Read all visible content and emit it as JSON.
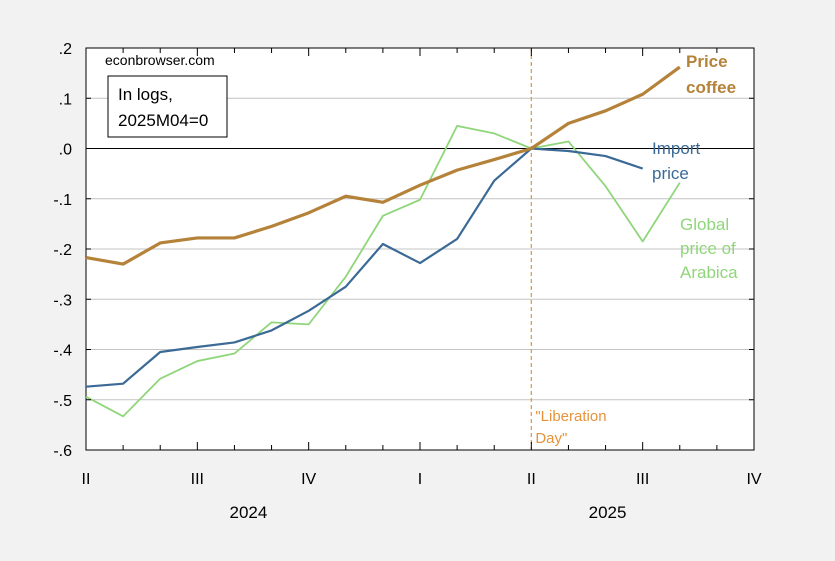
{
  "chart_data": {
    "type": "line",
    "source_note": "econbrowser.com",
    "note_lines": [
      "In logs,",
      "2025M04=0"
    ],
    "ylim": [
      -0.6,
      0.2
    ],
    "yticks": [
      {
        "value": 0.2,
        "label": ".2"
      },
      {
        "value": 0.1,
        "label": ".1"
      },
      {
        "value": 0.0,
        "label": ".0"
      },
      {
        "value": -0.1,
        "label": "-.1"
      },
      {
        "value": -0.2,
        "label": "-.2"
      },
      {
        "value": -0.3,
        "label": "-.3"
      },
      {
        "value": -0.4,
        "label": "-.4"
      },
      {
        "value": -0.5,
        "label": "-.5"
      },
      {
        "value": -0.6,
        "label": "-.6"
      }
    ],
    "x": [
      "2024M04",
      "2024M05",
      "2024M06",
      "2024M07",
      "2024M08",
      "2024M09",
      "2024M10",
      "2024M11",
      "2024M12",
      "2025M01",
      "2025M02",
      "2025M03",
      "2025M04",
      "2025M05",
      "2025M06",
      "2025M07",
      "2025M08"
    ],
    "xlim": [
      "2024M04",
      "2025M10"
    ],
    "quarter_ticks": [
      {
        "at": "2024M04",
        "label": "II"
      },
      {
        "at": "2024M07",
        "label": "III"
      },
      {
        "at": "2024M10",
        "label": "IV"
      },
      {
        "at": "2025M01",
        "label": "I"
      },
      {
        "at": "2025M04",
        "label": "II"
      },
      {
        "at": "2025M07",
        "label": "III"
      },
      {
        "at": "2025M10",
        "label": "IV"
      }
    ],
    "years": [
      {
        "label": "2024",
        "center": "2024M08"
      },
      {
        "label": "2025",
        "center": "2025M06"
      }
    ],
    "series": [
      {
        "name": "Price coffee",
        "label_lines": [
          "Price",
          "coffee"
        ],
        "color": "#b5823a",
        "values": [
          -0.217,
          -0.23,
          -0.188,
          -0.178,
          -0.178,
          -0.155,
          -0.128,
          -0.095,
          -0.107,
          -0.073,
          -0.043,
          -0.022,
          0.0,
          0.05,
          0.075,
          0.108,
          0.162
        ]
      },
      {
        "name": "Import price",
        "label_lines": [
          "Import",
          "price"
        ],
        "color": "#3b6a96",
        "values": [
          -0.474,
          -0.468,
          -0.405,
          -0.395,
          -0.386,
          -0.362,
          -0.323,
          -0.275,
          -0.19,
          -0.228,
          -0.18,
          -0.064,
          0.0,
          -0.005,
          -0.015,
          -0.04,
          null
        ]
      },
      {
        "name": "Global price of Arabica",
        "label_lines": [
          "Global",
          "price of",
          "Arabica"
        ],
        "color": "#8fd67a",
        "values": [
          -0.494,
          -0.533,
          -0.458,
          -0.423,
          -0.408,
          -0.346,
          -0.35,
          -0.255,
          -0.134,
          -0.102,
          0.045,
          0.03,
          0.0,
          0.014,
          -0.075,
          -0.185,
          -0.068
        ]
      }
    ],
    "event": {
      "at": "2025M04",
      "label_lines": [
        "\"Liberation",
        "Day\""
      ],
      "color": "#e8923a"
    },
    "grid": true,
    "legend": "inline labels"
  }
}
